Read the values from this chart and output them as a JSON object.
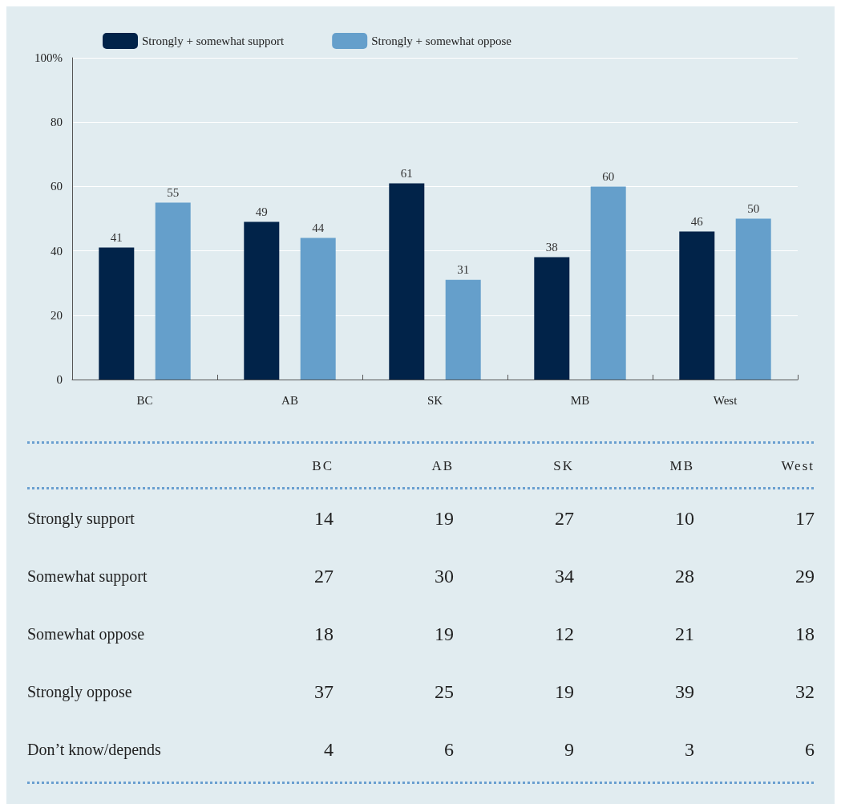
{
  "chart_data": [
    {
      "type": "bar",
      "categories": [
        "BC",
        "AB",
        "SK",
        "MB",
        "West"
      ],
      "series": [
        {
          "name": "Strongly + somewhat support",
          "color": "#012349",
          "values": [
            41,
            49,
            61,
            38,
            46
          ]
        },
        {
          "name": "Strongly + somewhat oppose",
          "color": "#659fcb",
          "values": [
            55,
            44,
            31,
            60,
            50
          ]
        }
      ],
      "ylim": [
        0,
        100
      ],
      "yticks": [
        0,
        20,
        40,
        60,
        80,
        {
          "value": 100,
          "label": "100%"
        }
      ],
      "grid": "y",
      "legend": "top left",
      "data_labels": true
    },
    {
      "type": "other",
      "data_labels": true,
      "categories": [
        "BC",
        "AB",
        "SK",
        "MB",
        "West"
      ],
      "series": [
        {
          "name": "Strongly support",
          "values": [
            14,
            19,
            27,
            10,
            17
          ]
        },
        {
          "name": "Somewhat support",
          "values": [
            27,
            30,
            34,
            28,
            29
          ]
        },
        {
          "name": "Somewhat oppose",
          "values": [
            18,
            19,
            12,
            21,
            18
          ]
        },
        {
          "name": "Strongly oppose",
          "values": [
            37,
            25,
            19,
            39,
            32
          ]
        },
        {
          "name": "Don’t know/depends",
          "values": [
            4,
            6,
            9,
            3,
            6
          ]
        }
      ]
    }
  ]
}
